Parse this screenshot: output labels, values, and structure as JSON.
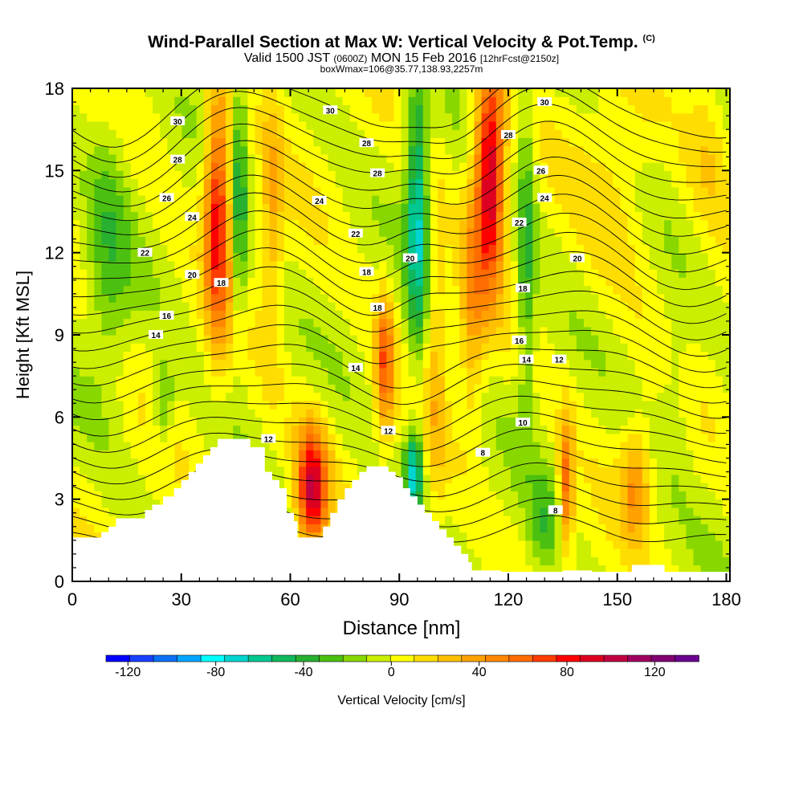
{
  "header": {
    "title": "Wind-Parallel Section at Max W: Vertical Velocity & Pot.Temp.",
    "title_mark": "(C)",
    "subtitle_main": "Valid 1500 JST",
    "subtitle_small1": "(0600Z)",
    "subtitle_date": "MON 15 Feb 2016",
    "subtitle_small2": "[12hrFcst@2150z]",
    "subsubtitle": "boxWmax=106@35.77,138.93,2257m"
  },
  "chart_data": {
    "type": "heatmap",
    "xlabel": "Distance [nm]",
    "ylabel": "Height [Kft MSL]",
    "xlim": [
      0,
      181
    ],
    "ylim": [
      0,
      18
    ],
    "x_ticks": [
      "0",
      "30",
      "60",
      "90",
      "120",
      "150",
      "180"
    ],
    "y_ticks": [
      "0",
      "3",
      "6",
      "9",
      "12",
      "15",
      "18"
    ],
    "colorbar": {
      "label": "Vertical Velocity [cm/s]",
      "tick_labels": [
        "-120",
        "-80",
        "-40",
        "0",
        "40",
        "80",
        "120"
      ],
      "tick_values": [
        -120,
        -80,
        -40,
        0,
        40,
        80,
        120
      ],
      "range": [
        -130,
        140
      ],
      "colors": [
        "#0000ff",
        "#1940ff",
        "#0b70f4",
        "#00a6ff",
        "#00ffff",
        "#00d4d0",
        "#00c890",
        "#10b85c",
        "#28b030",
        "#4cc010",
        "#88d800",
        "#ccee00",
        "#ffff00",
        "#ffdd00",
        "#ffc000",
        "#ffa200",
        "#ff8800",
        "#ff6c00",
        "#ff3c00",
        "#ff0000",
        "#dd0020",
        "#c00040",
        "#a00060",
        "#800070",
        "#6a0090"
      ]
    },
    "terrain_kft": [
      [
        0,
        1.6
      ],
      [
        5,
        1.6
      ],
      [
        8,
        1.8
      ],
      [
        10,
        2.0
      ],
      [
        12,
        2.3
      ],
      [
        16,
        2.3
      ],
      [
        20,
        2.6
      ],
      [
        22,
        2.8
      ],
      [
        25,
        3.1
      ],
      [
        28,
        3.4
      ],
      [
        30,
        3.7
      ],
      [
        32,
        4.0
      ],
      [
        34,
        4.3
      ],
      [
        36,
        4.6
      ],
      [
        38,
        4.9
      ],
      [
        40,
        5.2
      ],
      [
        47,
        5.2
      ],
      [
        49,
        4.9
      ],
      [
        52,
        4.9
      ],
      [
        53,
        4.0
      ],
      [
        55,
        3.7
      ],
      [
        57,
        3.4
      ],
      [
        59,
        2.5
      ],
      [
        61,
        2.2
      ],
      [
        62,
        1.6
      ],
      [
        67,
        1.6
      ],
      [
        69,
        2.0
      ],
      [
        71,
        2.5
      ],
      [
        73,
        3.0
      ],
      [
        75,
        3.4
      ],
      [
        77,
        3.7
      ],
      [
        79,
        4.0
      ],
      [
        81,
        4.2
      ],
      [
        85,
        4.2
      ],
      [
        87,
        4.0
      ],
      [
        89,
        3.8
      ],
      [
        91,
        3.4
      ],
      [
        93,
        3.1
      ],
      [
        95,
        2.8
      ],
      [
        97,
        2.5
      ],
      [
        99,
        2.2
      ],
      [
        101,
        1.9
      ],
      [
        103,
        1.6
      ],
      [
        105,
        1.3
      ],
      [
        107,
        1.0
      ],
      [
        109,
        0.7
      ],
      [
        110,
        0.4
      ],
      [
        116,
        0.4
      ],
      [
        118,
        0.35
      ],
      [
        125,
        0.35
      ],
      [
        130,
        0.35
      ],
      [
        135,
        0.4
      ],
      [
        140,
        0.4
      ],
      [
        143,
        0.35
      ],
      [
        152,
        0.35
      ],
      [
        154,
        0.6
      ],
      [
        161,
        0.6
      ],
      [
        163,
        0.35
      ],
      [
        181,
        0.35
      ]
    ],
    "velocity_features_cm_s": [
      {
        "x": 40,
        "z": 13.5,
        "w": 85,
        "sx": 3.5,
        "sz": 4.5
      },
      {
        "x": 46,
        "z": 14.0,
        "w": -40,
        "sx": 2.0,
        "sz": 5.0
      },
      {
        "x": 55,
        "z": 13.0,
        "w": 30,
        "sx": 3.0,
        "sz": 5.0
      },
      {
        "x": 66,
        "z": 3.0,
        "w": 70,
        "sx": 4.0,
        "sz": 1.8
      },
      {
        "x": 66,
        "z": 4.5,
        "w": 40,
        "sx": 5.0,
        "sz": 2.0
      },
      {
        "x": 86,
        "z": 8.0,
        "w": 60,
        "sx": 2.5,
        "sz": 2.5
      },
      {
        "x": 94,
        "z": 4.0,
        "w": -70,
        "sx": 2.5,
        "sz": 1.6
      },
      {
        "x": 95,
        "z": 13.5,
        "w": -65,
        "sx": 3.0,
        "sz": 5.0
      },
      {
        "x": 100,
        "z": 8.5,
        "w": 25,
        "sx": 3.0,
        "sz": 6.0
      },
      {
        "x": 115,
        "z": 15.0,
        "w": 105,
        "sx": 4.0,
        "sz": 4.0
      },
      {
        "x": 110,
        "z": 10.0,
        "w": 35,
        "sx": 3.5,
        "sz": 4.0
      },
      {
        "x": 125,
        "z": 12.0,
        "w": -35,
        "sx": 2.5,
        "sz": 6.0
      },
      {
        "x": 136,
        "z": 3.5,
        "w": 60,
        "sx": 2.0,
        "sz": 2.5
      },
      {
        "x": 130,
        "z": 2.0,
        "w": -25,
        "sx": 4.0,
        "sz": 2.0
      },
      {
        "x": 155,
        "z": 3.5,
        "w": 40,
        "sx": 4.0,
        "sz": 2.0
      },
      {
        "x": 150,
        "z": 14.0,
        "w": 15,
        "sx": 10.0,
        "sz": 4.0
      },
      {
        "x": 10,
        "z": 12.0,
        "w": -25,
        "sx": 6.0,
        "sz": 5.0
      },
      {
        "x": 25,
        "z": 6.5,
        "w": -30,
        "sx": 3.0,
        "sz": 1.5
      },
      {
        "x": 175,
        "z": 16.0,
        "w": 20,
        "sx": 6.0,
        "sz": 3.0
      },
      {
        "x": 166,
        "z": 7.0,
        "w": -15,
        "sx": 5.0,
        "sz": 3.0
      }
    ],
    "isentrope_labels": [
      {
        "text": "30",
        "x": 29,
        "z": 16.8
      },
      {
        "text": "28",
        "x": 29,
        "z": 15.4
      },
      {
        "text": "26",
        "x": 26,
        "z": 14.0
      },
      {
        "text": "24",
        "x": 33,
        "z": 13.3
      },
      {
        "text": "22",
        "x": 20,
        "z": 12.0
      },
      {
        "text": "20",
        "x": 33,
        "z": 11.2
      },
      {
        "text": "18",
        "x": 41,
        "z": 10.9
      },
      {
        "text": "16",
        "x": 26,
        "z": 9.7
      },
      {
        "text": "14",
        "x": 23,
        "z": 9.0
      },
      {
        "text": "12",
        "x": 54,
        "z": 5.2
      },
      {
        "text": "30",
        "x": 71,
        "z": 17.2
      },
      {
        "text": "28",
        "x": 81,
        "z": 16.0
      },
      {
        "text": "28",
        "x": 84,
        "z": 14.9
      },
      {
        "text": "24",
        "x": 68,
        "z": 13.9
      },
      {
        "text": "22",
        "x": 78,
        "z": 12.7
      },
      {
        "text": "18",
        "x": 81,
        "z": 11.3
      },
      {
        "text": "18",
        "x": 84,
        "z": 10.0
      },
      {
        "text": "14",
        "x": 78,
        "z": 7.8
      },
      {
        "text": "20",
        "x": 93,
        "z": 11.8
      },
      {
        "text": "12",
        "x": 87,
        "z": 5.5
      },
      {
        "text": "30",
        "x": 130,
        "z": 17.5
      },
      {
        "text": "28",
        "x": 120,
        "z": 16.3
      },
      {
        "text": "26",
        "x": 129,
        "z": 15.0
      },
      {
        "text": "24",
        "x": 130,
        "z": 14.0
      },
      {
        "text": "22",
        "x": 123,
        "z": 13.1
      },
      {
        "text": "20",
        "x": 139,
        "z": 11.8
      },
      {
        "text": "18",
        "x": 124,
        "z": 10.7
      },
      {
        "text": "16",
        "x": 123,
        "z": 8.8
      },
      {
        "text": "14",
        "x": 125,
        "z": 8.1
      },
      {
        "text": "12",
        "x": 134,
        "z": 8.1
      },
      {
        "text": "10",
        "x": 124,
        "z": 5.8
      },
      {
        "text": "8",
        "x": 113,
        "z": 4.7
      },
      {
        "text": "8",
        "x": 133,
        "z": 2.6
      }
    ]
  }
}
